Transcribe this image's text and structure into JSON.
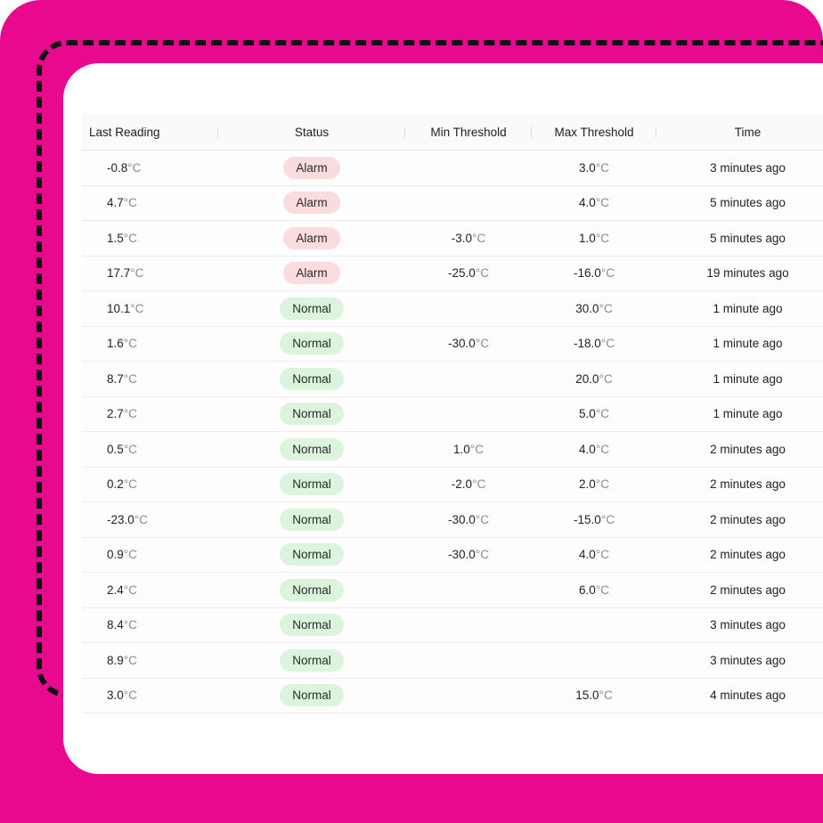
{
  "colors": {
    "frame": "#e8098f",
    "alarm_bg": "#fbdcdc",
    "normal_bg": "#dcf3dc"
  },
  "table": {
    "headers": [
      "Last Reading",
      "Status",
      "Min Threshold",
      "Max Threshold",
      "Time"
    ],
    "unit": "°C",
    "rows": [
      {
        "reading": "-0.8",
        "status": "Alarm",
        "min": "",
        "max": "3.0",
        "time": "3 minutes ago"
      },
      {
        "reading": "4.7",
        "status": "Alarm",
        "min": "",
        "max": "4.0",
        "time": "5 minutes ago"
      },
      {
        "reading": "1.5",
        "status": "Alarm",
        "min": "-3.0",
        "max": "1.0",
        "time": "5 minutes ago"
      },
      {
        "reading": "17.7",
        "status": "Alarm",
        "min": "-25.0",
        "max": "-16.0",
        "time": "19 minutes ago"
      },
      {
        "reading": "10.1",
        "status": "Normal",
        "min": "",
        "max": "30.0",
        "time": "1 minute ago"
      },
      {
        "reading": "1.6",
        "status": "Normal",
        "min": "-30.0",
        "max": "-18.0",
        "time": "1 minute ago"
      },
      {
        "reading": "8.7",
        "status": "Normal",
        "min": "",
        "max": "20.0",
        "time": "1 minute ago"
      },
      {
        "reading": "2.7",
        "status": "Normal",
        "min": "",
        "max": "5.0",
        "time": "1 minute ago"
      },
      {
        "reading": "0.5",
        "status": "Normal",
        "min": "1.0",
        "max": "4.0",
        "time": "2 minutes ago"
      },
      {
        "reading": "0.2",
        "status": "Normal",
        "min": "-2.0",
        "max": "2.0",
        "time": "2 minutes ago"
      },
      {
        "reading": "-23.0",
        "status": "Normal",
        "min": "-30.0",
        "max": "-15.0",
        "time": "2 minutes ago"
      },
      {
        "reading": "0.9",
        "status": "Normal",
        "min": "-30.0",
        "max": "4.0",
        "time": "2 minutes ago"
      },
      {
        "reading": "2.4",
        "status": "Normal",
        "min": "",
        "max": "6.0",
        "time": "2 minutes ago"
      },
      {
        "reading": "8.4",
        "status": "Normal",
        "min": "",
        "max": "",
        "time": "3 minutes ago"
      },
      {
        "reading": "8.9",
        "status": "Normal",
        "min": "",
        "max": "",
        "time": "3 minutes ago"
      },
      {
        "reading": "3.0",
        "status": "Normal",
        "min": "",
        "max": "15.0",
        "time": "4 minutes ago"
      }
    ]
  }
}
